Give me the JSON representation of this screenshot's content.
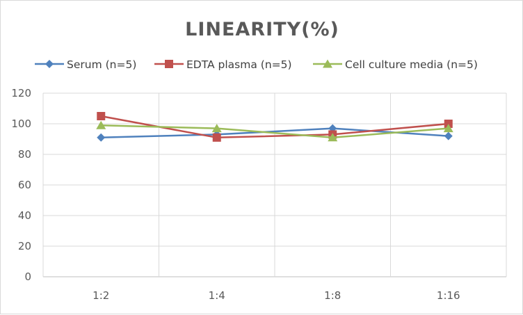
{
  "chart_data": {
    "type": "line",
    "title": "LINEARITY(%)",
    "categories": [
      "1:2",
      "1:4",
      "1:8",
      "1:16"
    ],
    "series": [
      {
        "name": "Serum (n=5)",
        "values": [
          91,
          93,
          97,
          92
        ],
        "color": "#4f81bd",
        "marker": "diamond"
      },
      {
        "name": "EDTA plasma (n=5)",
        "values": [
          105,
          91,
          93,
          100
        ],
        "color": "#c0504d",
        "marker": "square"
      },
      {
        "name": "Cell culture media (n=5)",
        "values": [
          99,
          97,
          91,
          97
        ],
        "color": "#9bbb59",
        "marker": "triangle"
      }
    ],
    "ylim": [
      0,
      120
    ],
    "yticks": [
      0,
      20,
      40,
      60,
      80,
      100,
      120
    ],
    "grid": true,
    "legend_position": "top"
  }
}
